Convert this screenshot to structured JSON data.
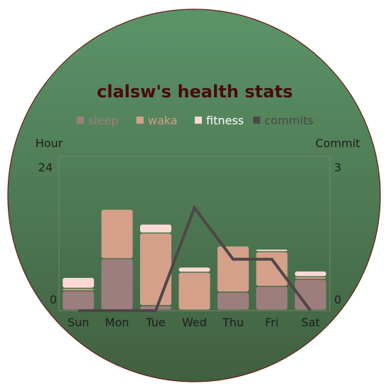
{
  "chart_data": {
    "type": "bar",
    "title": "clalsw's health stats",
    "categories": [
      "Sun",
      "Mon",
      "Tue",
      "Wed",
      "Thu",
      "Fri",
      "Sat"
    ],
    "stacked": true,
    "series": [
      {
        "name": "sleep",
        "axis": "left",
        "values": [
          3.0,
          8.0,
          0.7,
          0,
          2.8,
          3.7,
          4.8
        ]
      },
      {
        "name": "waka",
        "axis": "left",
        "values": [
          0.4,
          7.7,
          11.3,
          5.9,
          7.2,
          5.4,
          0.4
        ]
      },
      {
        "name": "fitness",
        "axis": "left",
        "values": [
          1.7,
          0,
          1.4,
          0.8,
          0,
          0.4,
          0.9
        ]
      },
      {
        "name": "commits",
        "type": "line",
        "axis": "right",
        "values": [
          0,
          0,
          0,
          2,
          1,
          1,
          0
        ]
      }
    ],
    "ylabel_left": "Hour",
    "ylabel_right": "Commit",
    "ylim_left": [
      0,
      24
    ],
    "ylim_right": [
      0,
      3
    ],
    "left_ticks": [
      "24",
      "0"
    ],
    "right_ticks": [
      "3",
      "0"
    ],
    "legend_position": "top",
    "grid": false
  },
  "colors": {
    "sleep": "#9d7e7e",
    "waka": "#d4a08a",
    "fitness": "#fcd9d6",
    "commits": "#4d4747",
    "background_top": "#5b9468",
    "background_bottom": "#416040",
    "title": "#4a0a10"
  },
  "legend_text_colors": {
    "sleep": "#9d7e7e",
    "waka": "#d4a08a",
    "fitness": "#ffffff",
    "commits": "#4d4747"
  }
}
